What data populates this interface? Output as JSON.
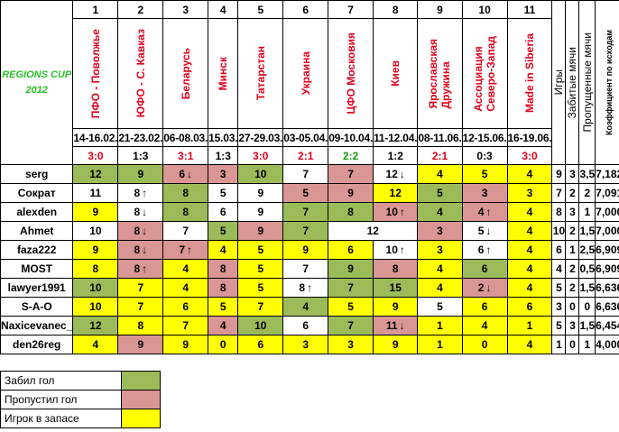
{
  "logo": {
    "line1": "REGIONS CUP",
    "line2": "2012"
  },
  "rounds": [
    {
      "n": "1",
      "team": "ПФО - Поволжье",
      "date": "14-16.02.",
      "score": "3:0",
      "color": "red"
    },
    {
      "n": "2",
      "team": "ЮФО - С. Кавказ",
      "date": "21-23.02.",
      "score": "1:3",
      "color": "black"
    },
    {
      "n": "3",
      "team": "Беларусь",
      "date": "06-08.03.",
      "score": "3:1",
      "color": "red"
    },
    {
      "n": "4",
      "team": "Минск",
      "date": "15.03.",
      "score": "1:3",
      "color": "black"
    },
    {
      "n": "5",
      "team": "Татарстан",
      "date": "27-29.03.",
      "score": "3:0",
      "color": "red"
    },
    {
      "n": "6",
      "team": "Украина",
      "date": "03-05.04.",
      "score": "2:1",
      "color": "red"
    },
    {
      "n": "7",
      "team": "ЦФО Московия",
      "date": "09-10.04.",
      "score": "2:2",
      "color": "green"
    },
    {
      "n": "8",
      "team": "Киев",
      "date": "11-12.04.",
      "score": "1:2",
      "color": "black"
    },
    {
      "n": "9",
      "team": "Ярославская\nДружина",
      "date": "08-11.06.",
      "score": "2:1",
      "color": "red"
    },
    {
      "n": "10",
      "team": "Ассоциация\nСеверо-Запад",
      "date": "12-15.06.",
      "score": "0:3",
      "color": "black"
    },
    {
      "n": "11",
      "team": "Made in Siberia",
      "date": "16-19.06.",
      "score": "3:0",
      "color": "red"
    }
  ],
  "stat_headers": {
    "games": "Игры",
    "scored": "Забитые мячи",
    "conceded": "Пропущенные мячи",
    "coef": "Коэффициент по исходам"
  },
  "players": [
    {
      "name": "serg",
      "cells": [
        [
          "12",
          "g",
          ""
        ],
        [
          "9",
          "g",
          ""
        ],
        [
          "6",
          "r",
          "↓"
        ],
        [
          "3",
          "r",
          ""
        ],
        [
          "10",
          "g",
          ""
        ],
        [
          "7",
          "w",
          ""
        ],
        [
          "7",
          "r",
          ""
        ],
        [
          "12",
          "w",
          "↓"
        ],
        [
          "4",
          "y",
          ""
        ],
        [
          "5",
          "y",
          ""
        ],
        [
          "4",
          "y",
          ""
        ]
      ],
      "games": "9",
      "scored": "3",
      "conceded": "3,5",
      "coef": "7,182"
    },
    {
      "name": "Сократ",
      "cells": [
        [
          "11",
          "w",
          ""
        ],
        [
          "8",
          "w",
          "↑"
        ],
        [
          "8",
          "g",
          ""
        ],
        [
          "5",
          "w",
          ""
        ],
        [
          "9",
          "w",
          ""
        ],
        [
          "5",
          "r",
          ""
        ],
        [
          "9",
          "r",
          ""
        ],
        [
          "12",
          "y",
          ""
        ],
        [
          "5",
          "g",
          ""
        ],
        [
          "3",
          "r",
          ""
        ],
        [
          "3",
          "y",
          ""
        ]
      ],
      "games": "7",
      "scored": "2",
      "conceded": "2",
      "coef": "7,091"
    },
    {
      "name": "alexden",
      "cells": [
        [
          "9",
          "y",
          ""
        ],
        [
          "8",
          "w",
          "↓"
        ],
        [
          "8",
          "g",
          ""
        ],
        [
          "6",
          "w",
          ""
        ],
        [
          "9",
          "w",
          ""
        ],
        [
          "7",
          "g",
          ""
        ],
        [
          "8",
          "g",
          ""
        ],
        [
          "10",
          "r",
          "↑"
        ],
        [
          "4",
          "g",
          ""
        ],
        [
          "4",
          "r",
          "↑"
        ],
        [
          "4",
          "y",
          ""
        ]
      ],
      "games": "8",
      "scored": "3",
      "conceded": "1",
      "coef": "7,000"
    },
    {
      "name": "Ahmet",
      "cells": [
        [
          "10",
          "w",
          ""
        ],
        [
          "8",
          "r",
          "↓"
        ],
        [
          "7",
          "w",
          ""
        ],
        [
          "5",
          "g",
          ""
        ],
        [
          "9",
          "r",
          ""
        ],
        [
          "7",
          "g",
          ""
        ],
        [
          "12",
          "w",
          ""
        ],
        [
          "3",
          "r",
          ""
        ],
        [
          "5",
          "w",
          "↓"
        ],
        [
          "4",
          "y",
          ""
        ]
      ],
      "span8": true,
      "games": "10",
      "scored": "2",
      "conceded": "1,5",
      "coef": "7,000"
    },
    {
      "name": "faza222",
      "cells": [
        [
          "9",
          "y",
          ""
        ],
        [
          "8",
          "r",
          "↓"
        ],
        [
          "7",
          "r",
          "↑"
        ],
        [
          "4",
          "y",
          ""
        ],
        [
          "5",
          "y",
          ""
        ],
        [
          "9",
          "y",
          ""
        ],
        [
          "6",
          "y",
          ""
        ],
        [
          "10",
          "w",
          "↑"
        ],
        [
          "3",
          "y",
          ""
        ],
        [
          "6",
          "w",
          "↑"
        ],
        [
          "4",
          "y",
          ""
        ]
      ],
      "games": "6",
      "scored": "1",
      "conceded": "2,5",
      "coef": "6,909"
    },
    {
      "name": "MOST",
      "cells": [
        [
          "8",
          "y",
          ""
        ],
        [
          "8",
          "r",
          "↑"
        ],
        [
          "4",
          "y",
          ""
        ],
        [
          "8",
          "r",
          ""
        ],
        [
          "5",
          "y",
          ""
        ],
        [
          "7",
          "w",
          ""
        ],
        [
          "9",
          "g",
          ""
        ],
        [
          "8",
          "r",
          ""
        ],
        [
          "4",
          "y",
          ""
        ],
        [
          "6",
          "g",
          ""
        ],
        [
          "4",
          "y",
          ""
        ]
      ],
      "games": "4",
      "scored": "2",
      "conceded": "0,5",
      "coef": "6,909"
    },
    {
      "name": "lawyer1991",
      "cells": [
        [
          "10",
          "g",
          ""
        ],
        [
          "7",
          "y",
          ""
        ],
        [
          "4",
          "y",
          ""
        ],
        [
          "8",
          "r",
          ""
        ],
        [
          "5",
          "y",
          ""
        ],
        [
          "8",
          "w",
          "↑"
        ],
        [
          "7",
          "g",
          ""
        ],
        [
          "15",
          "g",
          ""
        ],
        [
          "4",
          "y",
          ""
        ],
        [
          "2",
          "r",
          "↓"
        ],
        [
          "4",
          "y",
          ""
        ]
      ],
      "games": "5",
      "scored": "2",
      "conceded": "1,5",
      "coef": "6,636"
    },
    {
      "name": "S-A-O",
      "cells": [
        [
          "10",
          "y",
          ""
        ],
        [
          "7",
          "y",
          ""
        ],
        [
          "6",
          "y",
          ""
        ],
        [
          "5",
          "y",
          ""
        ],
        [
          "7",
          "y",
          ""
        ],
        [
          "4",
          "g",
          ""
        ],
        [
          "5",
          "y",
          ""
        ],
        [
          "9",
          "y",
          ""
        ],
        [
          "5",
          "w",
          ""
        ],
        [
          "6",
          "y",
          ""
        ],
        [
          "6",
          "y",
          ""
        ]
      ],
      "games": "3",
      "scored": "0",
      "conceded": "0",
      "coef": "6,636"
    },
    {
      "name": "Naxicevanec_",
      "cells": [
        [
          "12",
          "g",
          ""
        ],
        [
          "8",
          "y",
          ""
        ],
        [
          "7",
          "y",
          ""
        ],
        [
          "4",
          "r",
          ""
        ],
        [
          "10",
          "g",
          ""
        ],
        [
          "6",
          "w",
          ""
        ],
        [
          "7",
          "g",
          ""
        ],
        [
          "11",
          "r",
          "↓"
        ],
        [
          "1",
          "y",
          ""
        ],
        [
          "4",
          "y",
          ""
        ],
        [
          "1",
          "y",
          ""
        ]
      ],
      "games": "5",
      "scored": "3",
      "conceded": "1,5",
      "coef": "6,454"
    },
    {
      "name": "den26reg",
      "cells": [
        [
          "4",
          "y",
          ""
        ],
        [
          "9",
          "r",
          ""
        ],
        [
          "9",
          "y",
          ""
        ],
        [
          "0",
          "y",
          ""
        ],
        [
          "6",
          "y",
          ""
        ],
        [
          "3",
          "y",
          ""
        ],
        [
          "3",
          "y",
          ""
        ],
        [
          "9",
          "y",
          ""
        ],
        [
          "1",
          "y",
          ""
        ],
        [
          "0",
          "y",
          ""
        ],
        [
          "4",
          "y",
          ""
        ]
      ],
      "games": "1",
      "scored": "0",
      "conceded": "1",
      "coef": "4,000"
    }
  ],
  "legend": [
    {
      "label": "Забил гол",
      "color": "#9bbb59"
    },
    {
      "label": "Пропустил гол",
      "color": "#d99694"
    },
    {
      "label": "Игрок в запасе",
      "color": "#ffff00"
    }
  ]
}
